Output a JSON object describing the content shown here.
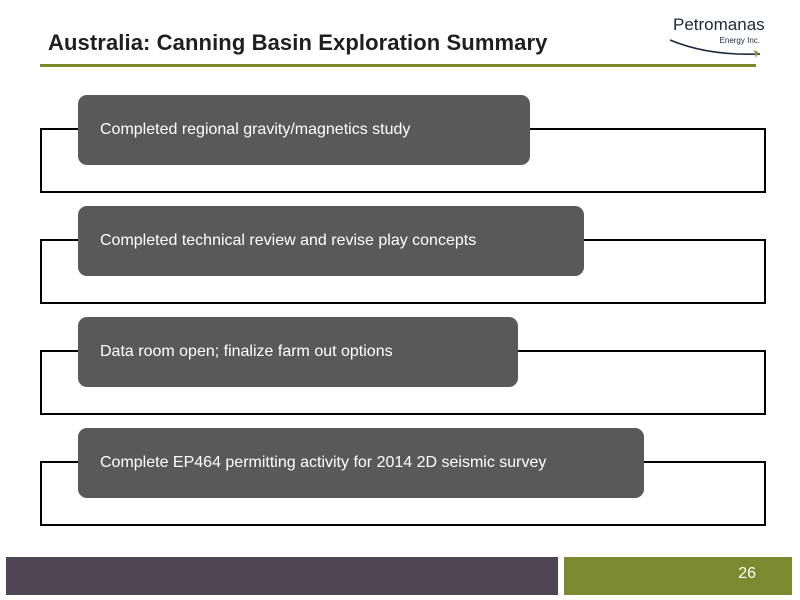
{
  "slide": {
    "title": "Australia: Canning Basin Exploration Summary",
    "page_number": "26"
  },
  "logo": {
    "name": "Petromanas",
    "subtitle": "Energy Inc."
  },
  "items": [
    {
      "label": "Completed regional gravity/magnetics study"
    },
    {
      "label": "Completed technical review and revise play concepts"
    },
    {
      "label": "Data room open; finalize farm out options"
    },
    {
      "label": "Complete EP464 permitting activity for 2014 2D seismic survey"
    }
  ],
  "colors": {
    "accent_green": "#7b8a2e",
    "footer_purple": "#4f4554",
    "pill_gray": "#595959"
  }
}
